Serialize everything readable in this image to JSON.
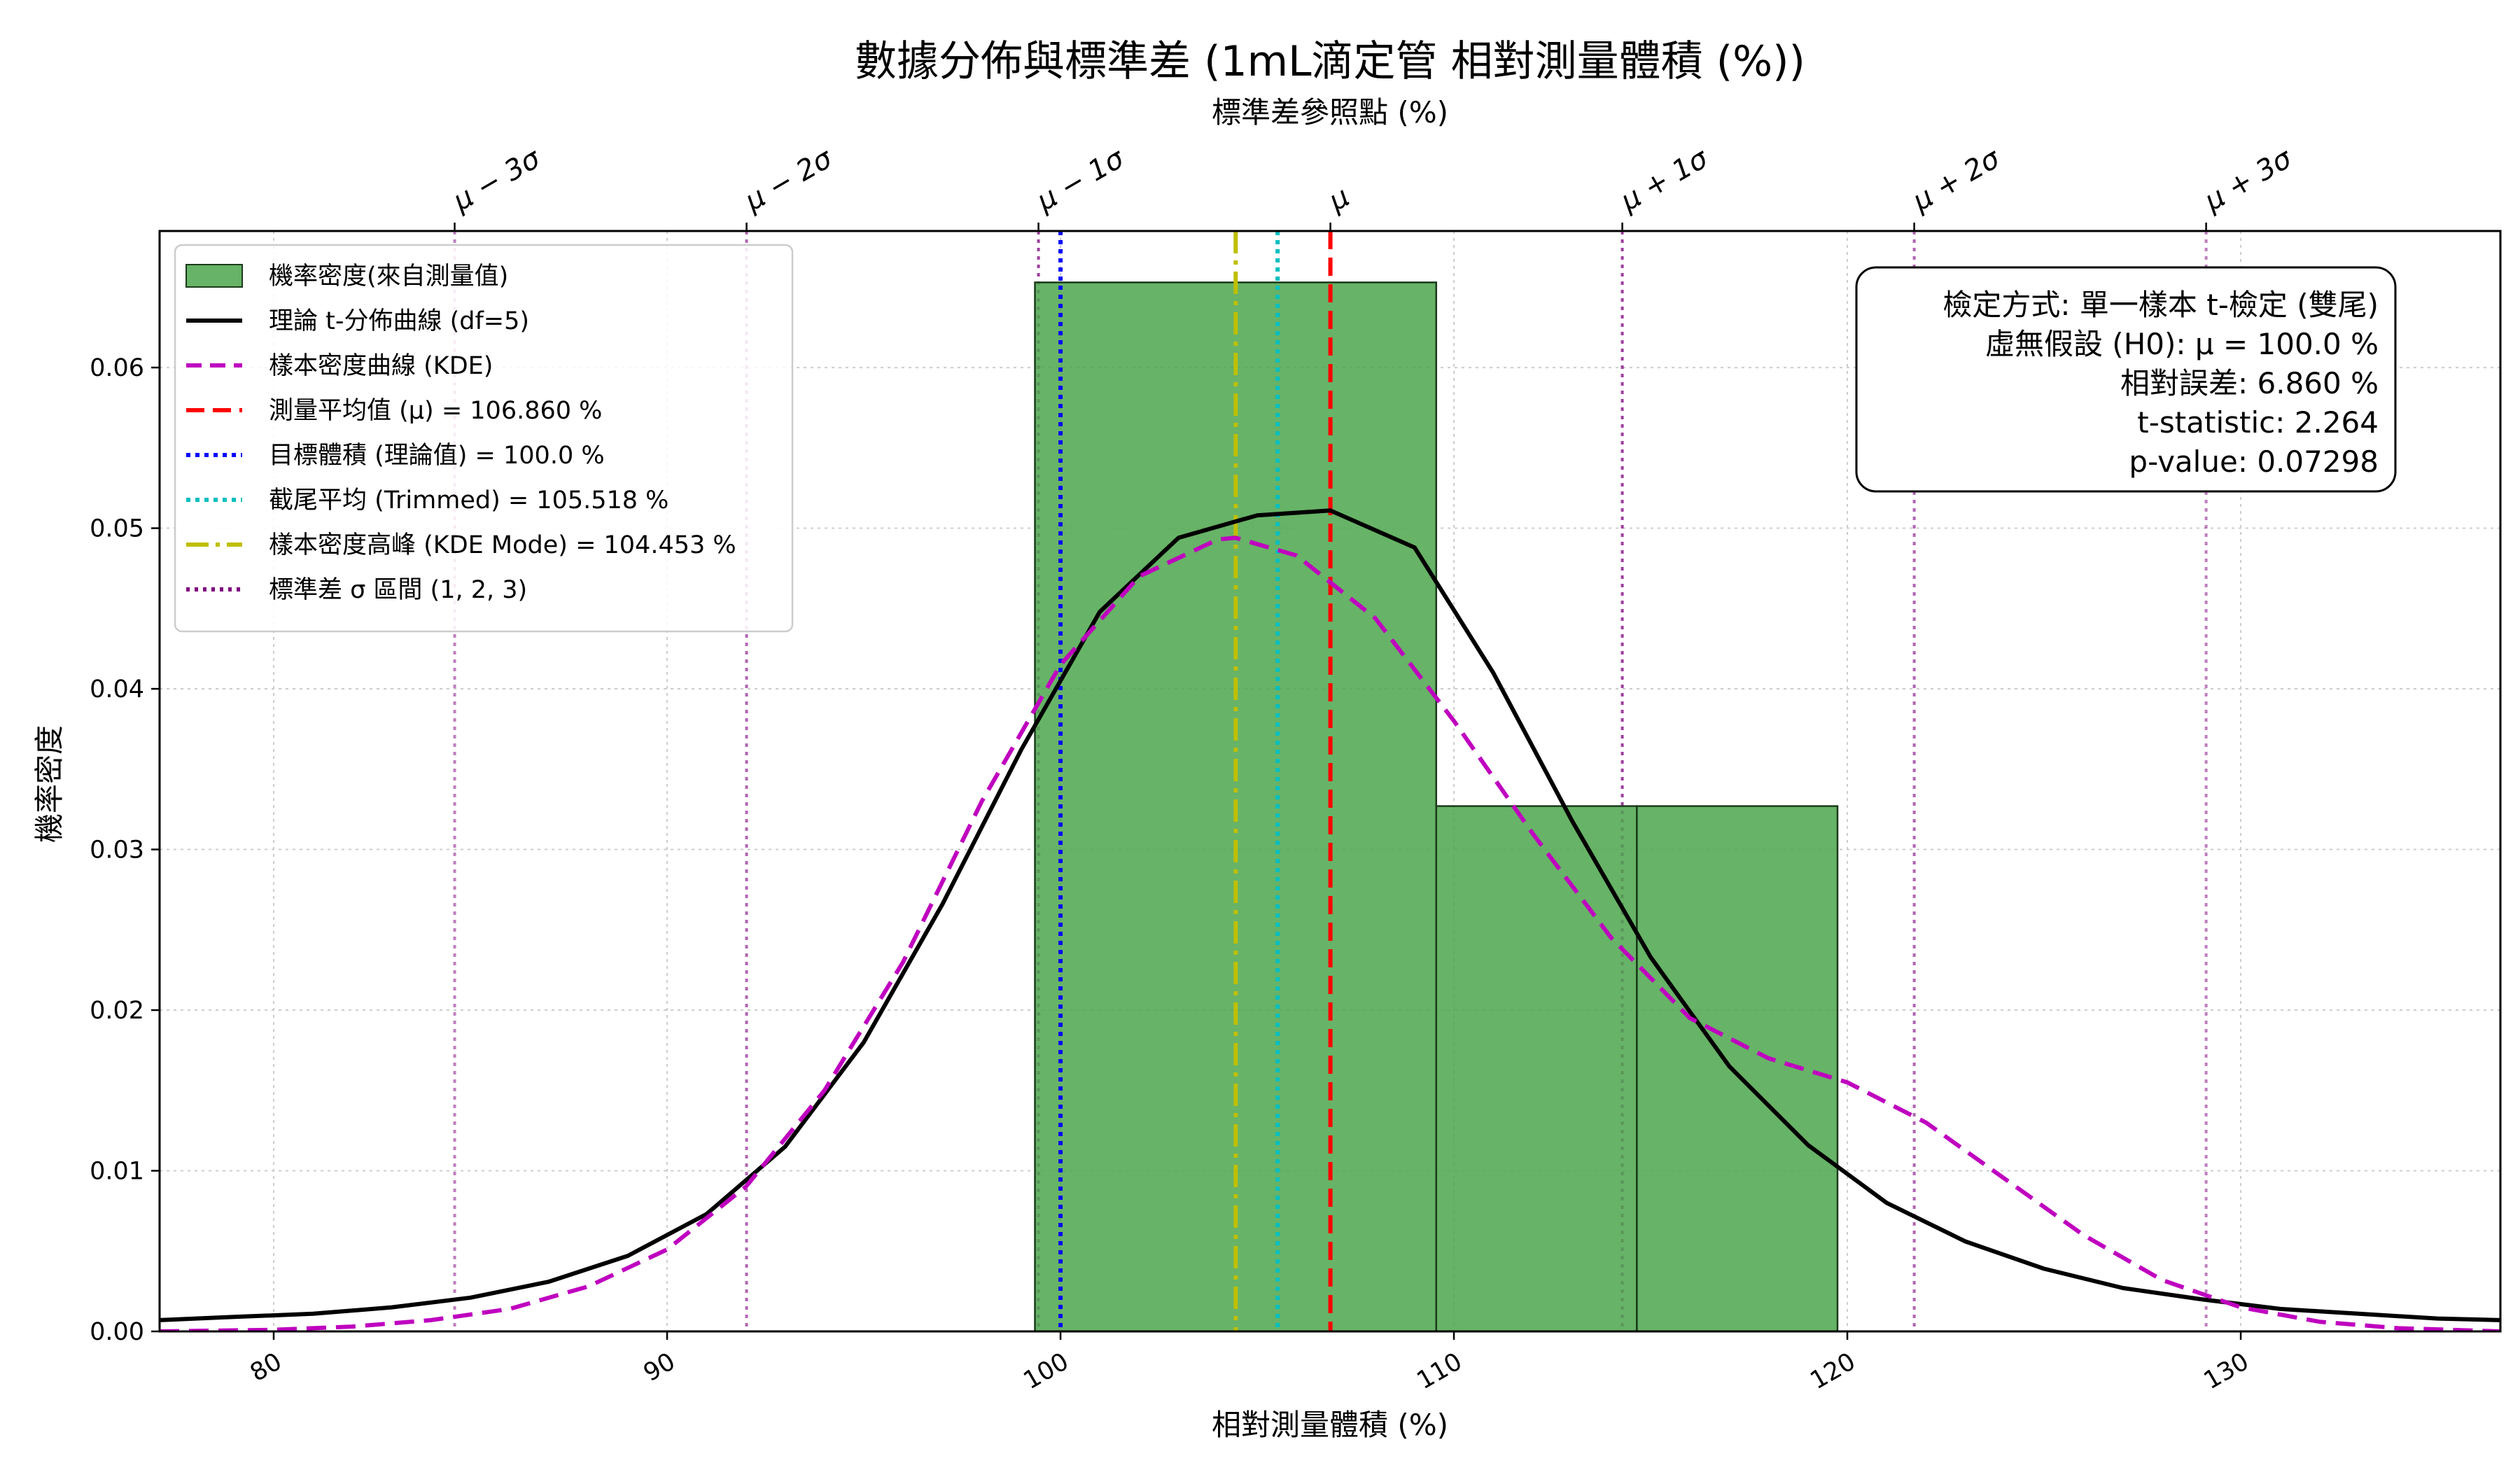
{
  "chart_data": {
    "type": "histogram",
    "title": "數據分佈與標準差 (1mL滴定管 相對測量體積 (%))",
    "xlabel": "相對測量體積 (%)",
    "ylabel": "機率密度",
    "top_axis_label": "標準差參照點 (%)",
    "xlim": [
      77.1,
      136.6
    ],
    "ylim": [
      0.0,
      0.0685
    ],
    "x_ticks": [
      80,
      90,
      100,
      110,
      120,
      130
    ],
    "y_ticks": [
      0.0,
      0.01,
      0.02,
      0.03,
      0.04,
      0.05,
      0.06
    ],
    "grid": true,
    "histogram": {
      "name": "機率密度(來自測量值)",
      "bins": [
        {
          "x0": 99.35,
          "x1": 109.55,
          "density": 0.0653
        },
        {
          "x0": 109.55,
          "x1": 114.65,
          "density": 0.0327
        },
        {
          "x0": 114.65,
          "x1": 119.75,
          "density": 0.0327
        }
      ],
      "color": "#4ca64c"
    },
    "series": [
      {
        "name": "理論 t-分佈曲線 (df=5)",
        "color": "#000000",
        "x": [
          77.1,
          79,
          81,
          83,
          85,
          87,
          89,
          91,
          93,
          95,
          97,
          99,
          101,
          103,
          105,
          106.86,
          109,
          111,
          113,
          115,
          117,
          119,
          121,
          123,
          125,
          127,
          129,
          131,
          133,
          135,
          136.6
        ],
        "y": [
          0.0007,
          0.0009,
          0.0011,
          0.0015,
          0.0021,
          0.0031,
          0.0047,
          0.0073,
          0.0115,
          0.018,
          0.0266,
          0.0362,
          0.0448,
          0.0494,
          0.0508,
          0.0511,
          0.0488,
          0.041,
          0.0318,
          0.0233,
          0.0165,
          0.0116,
          0.008,
          0.0056,
          0.0039,
          0.0027,
          0.002,
          0.0014,
          0.0011,
          0.0008,
          0.0007
        ]
      },
      {
        "name": "樣本密度曲線 (KDE)",
        "color": "#bf00bf",
        "x": [
          77.1,
          80,
          82,
          84,
          86,
          88,
          90,
          92,
          94,
          96,
          98,
          100,
          102,
          104,
          104.45,
          106,
          108,
          110,
          112,
          114,
          116,
          118,
          120,
          122,
          124,
          126,
          128,
          130,
          132,
          134,
          136.6
        ],
        "y": [
          0.0,
          0.0001,
          0.0003,
          0.0007,
          0.0014,
          0.0028,
          0.0051,
          0.009,
          0.015,
          0.023,
          0.033,
          0.0415,
          0.047,
          0.0493,
          0.0494,
          0.0483,
          0.0444,
          0.038,
          0.031,
          0.0245,
          0.0195,
          0.017,
          0.0155,
          0.013,
          0.0095,
          0.006,
          0.0032,
          0.0015,
          0.0006,
          0.0002,
          0.0
        ]
      }
    ],
    "vlines": [
      {
        "name": "測量平均值 (μ) = 106.860 %",
        "x": 106.86,
        "color": "#ff0000",
        "style": "dashed"
      },
      {
        "name": "目標體積 (理論值) = 100.0 %",
        "x": 100.0,
        "color": "#0000ff",
        "style": "dotted"
      },
      {
        "name": "截尾平均 (Trimmed) = 105.518 %",
        "x": 105.518,
        "color": "#00bfbf",
        "style": "dotted"
      },
      {
        "name": "樣本密度高峰 (KDE Mode) = 104.453 %",
        "x": 104.453,
        "color": "#bfbf00",
        "style": "dashdot"
      }
    ],
    "sigma_lines": {
      "name": "標準差 σ 區間 (1, 2, 3)",
      "mean": 106.86,
      "sigma": 7.42,
      "labels": [
        "μ − 3σ",
        "μ − 2σ",
        "μ − 1σ",
        "μ",
        "μ + 1σ",
        "μ + 2σ",
        "μ + 3σ"
      ],
      "opacity": [
        0.5,
        0.6,
        0.75,
        1.0,
        0.75,
        0.6,
        0.5
      ],
      "color": "#800080"
    },
    "legend_position": "upper-left",
    "stats_box": {
      "position": "upper-right",
      "lines": [
        "檢定方式: 單一樣本 t-檢定 (雙尾)",
        "虛無假設 (H0): μ = 100.0 %",
        "相對誤差: 6.860 %",
        "t-statistic: 2.264",
        "p-value: 0.07298"
      ]
    }
  }
}
